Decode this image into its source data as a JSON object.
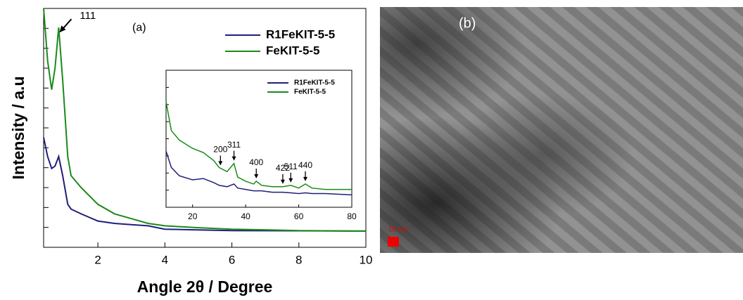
{
  "chart_data": [
    {
      "type": "line",
      "panel_label": "(a)",
      "xlabel": "Angle 2θ / Degree",
      "ylabel": "Intensity / a.u",
      "x": [
        0.38,
        0.5,
        0.62,
        0.72,
        0.83,
        0.95,
        1.1,
        1.2,
        1.5,
        2,
        2.5,
        3,
        3.5,
        4,
        5,
        6,
        8,
        10
      ],
      "series": [
        {
          "name": "R1FeKIT-5-5",
          "color": "#1f1f7a",
          "values": [
            46,
            38,
            33,
            34,
            38,
            30,
            18,
            16,
            14,
            11,
            10,
            9.5,
            9,
            7.6,
            7.3,
            7,
            6.9,
            6.8
          ]
        },
        {
          "name": "FeKIT-5-5",
          "color": "#1a8a1a",
          "values": [
            100,
            78,
            66,
            75,
            92,
            70,
            38,
            30,
            25,
            18,
            14,
            12,
            10,
            9,
            8.2,
            7.6,
            7,
            6.8
          ]
        }
      ],
      "xlim": [
        0.38,
        10
      ],
      "ylim": [
        0,
        100
      ],
      "xticks": [
        2,
        4,
        6,
        8,
        10
      ],
      "annotations": [
        {
          "text": "111",
          "x": 0.83
        }
      ]
    },
    {
      "type": "line",
      "x": [
        10,
        12,
        15,
        20,
        24,
        28,
        30,
        33,
        35.6,
        37,
        40,
        43,
        44,
        46,
        50,
        54,
        57,
        60,
        62.5,
        65,
        70,
        80
      ],
      "series": [
        {
          "name": "R1FeKIT-5-5",
          "color": "#1f1f7a",
          "values": [
            41,
            29,
            23,
            20,
            21,
            18,
            16,
            15,
            17,
            14,
            13,
            12,
            12,
            12,
            11,
            11,
            10.5,
            10,
            10.5,
            10,
            10,
            9
          ]
        },
        {
          "name": "FeKIT-5-5",
          "color": "#1a8a1a",
          "values": [
            77,
            56,
            49,
            43,
            40,
            34,
            29,
            26,
            32,
            22,
            19,
            17,
            19,
            16,
            15,
            15,
            16,
            14,
            17,
            14,
            13,
            13
          ]
        }
      ],
      "xlim": [
        10,
        80
      ],
      "ylim": [
        0,
        100
      ],
      "xticks": [
        20,
        40,
        60,
        80
      ],
      "annotations": [
        {
          "text": "200",
          "x": 30.5
        },
        {
          "text": "311",
          "x": 35.6
        },
        {
          "text": "400",
          "x": 44
        },
        {
          "text": "422",
          "x": 54
        },
        {
          "text": "511",
          "x": 57
        },
        {
          "text": "440",
          "x": 62.5
        }
      ]
    }
  ],
  "image_panel": {
    "label": "(b)",
    "scale_bar": "10 nm"
  }
}
